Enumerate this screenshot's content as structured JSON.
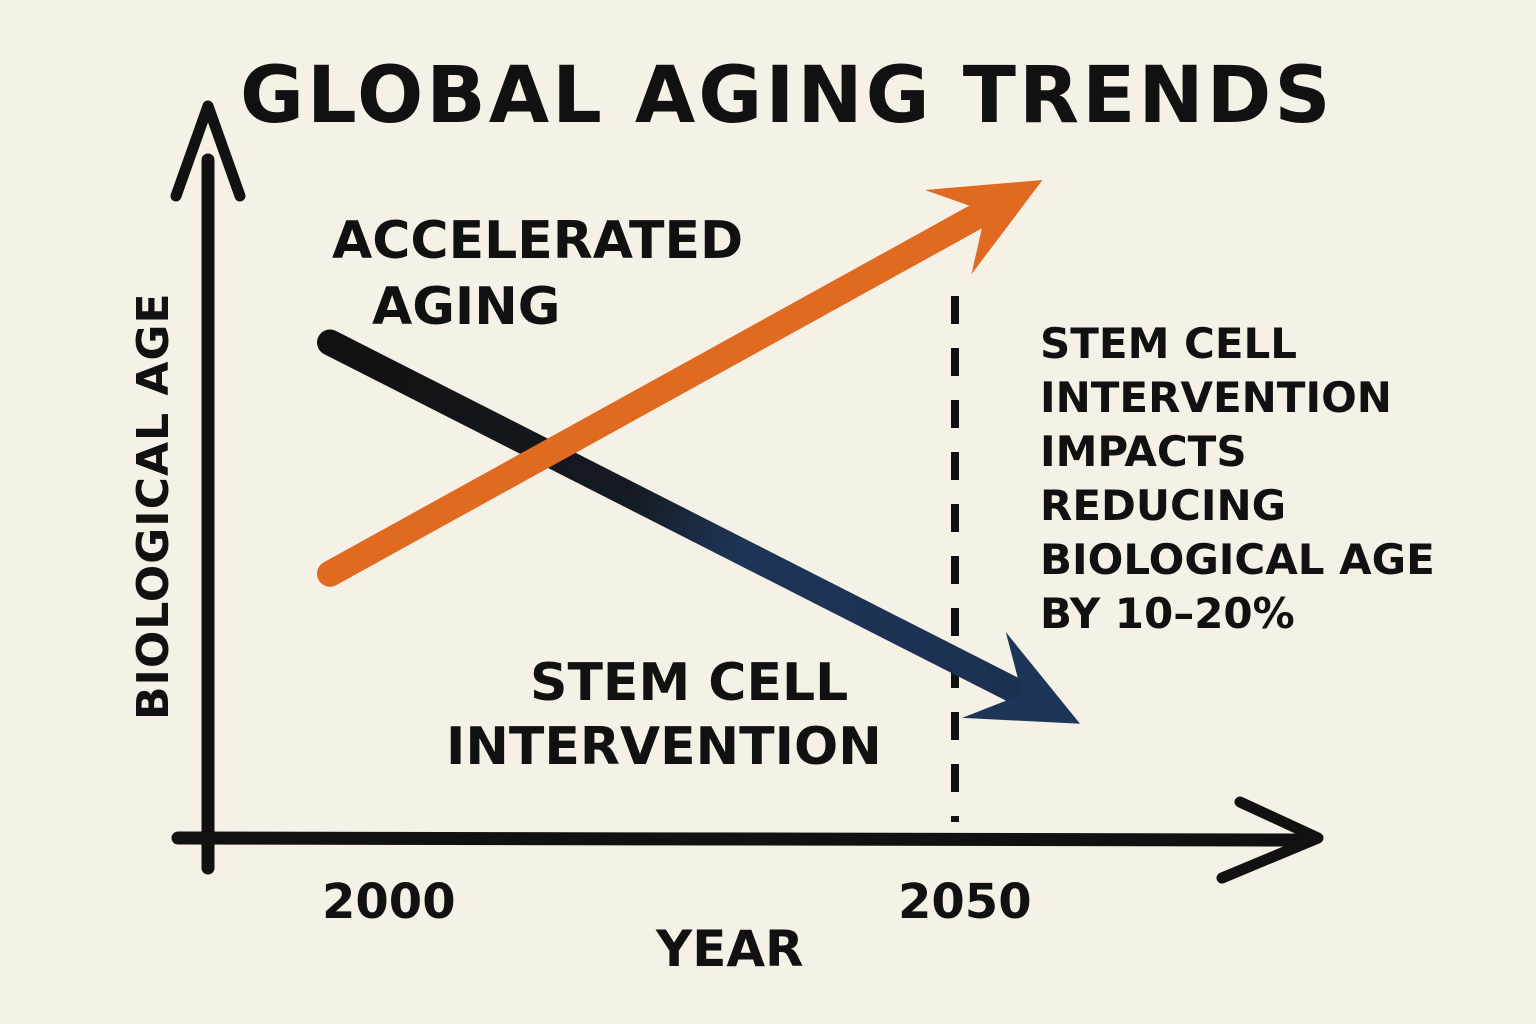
{
  "chart_data": {
    "type": "line",
    "title": "GLOBAL AGING TRENDS",
    "xlabel": "YEAR",
    "ylabel": "BIOLOGICAL AGE",
    "x_ticks": [
      "2000",
      "2050"
    ],
    "grid": false,
    "legend": "none",
    "series": [
      {
        "name": "ACCELERATED AGING",
        "label_lines": [
          "ACCELERATED",
          "AGING"
        ],
        "color": "#e06a1f",
        "x": [
          2000,
          2057
        ],
        "y": [
          0.37,
          1.0
        ],
        "arrowhead": "end"
      },
      {
        "name": "STEM CELL INTERVENTION",
        "label_lines": [
          "STEM CELL",
          "INTERVENTION"
        ],
        "color_start": "#111111",
        "color_end": "#1d3557",
        "x": [
          2000,
          2060
        ],
        "y": [
          0.74,
          0.13
        ],
        "arrowhead": "end"
      }
    ],
    "marker": {
      "x": 2050,
      "style": "dashed vertical",
      "annotation_lines": [
        "STEM CELL",
        "INTERVENTION",
        "IMPACTS",
        "REDUCING",
        "BIOLOGICAL AGE",
        "BY 10–20%"
      ]
    },
    "y_values_note": "relative scale, no ticks printed"
  },
  "colors": {
    "background": "#f6f1e6",
    "ink": "#111111",
    "orange": "#e06a1f",
    "navy": "#1d3557"
  }
}
